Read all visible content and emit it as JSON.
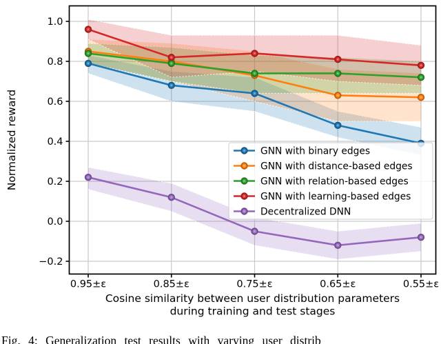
{
  "chart_data": {
    "type": "line",
    "x_categories": [
      "0.95±ε",
      "0.85±ε",
      "0.75±ε",
      "0.65±ε",
      "0.55±ε"
    ],
    "xlabel_lines": [
      "Cosine similarity between user distribution parameters",
      "during training and test stages"
    ],
    "xlabel": "Cosine similarity between user distribution parameters during training and test stages",
    "ylabel": "Normalized reward",
    "yticks": [
      {
        "v": 1.0,
        "label": "1.0"
      },
      {
        "v": 0.8,
        "label": "0.8"
      },
      {
        "v": 0.6,
        "label": "0.6"
      },
      {
        "v": 0.4,
        "label": "0.4"
      },
      {
        "v": 0.2,
        "label": "0.2"
      },
      {
        "v": 0.0,
        "label": "0.0"
      },
      {
        "v": -0.2,
        "label": "−0.2"
      }
    ],
    "ylim": [
      -0.26,
      1.08
    ],
    "grid": true,
    "legend_position": "lower-right-inside",
    "band_alpha": 0.22,
    "series": [
      {
        "name": "GNN with binary edges",
        "color": "#1f77b4",
        "values": [
          0.79,
          0.68,
          0.64,
          0.48,
          0.39
        ],
        "band_lower": [
          0.74,
          0.6,
          0.55,
          0.42,
          0.33
        ],
        "band_upper": [
          0.83,
          0.75,
          0.72,
          0.55,
          0.47
        ]
      },
      {
        "name": "GNN with distance-based edges",
        "color": "#ff7f0e",
        "values": [
          0.85,
          0.8,
          0.73,
          0.63,
          0.62
        ],
        "band_lower": [
          0.79,
          0.7,
          0.6,
          0.5,
          0.5
        ],
        "band_upper": [
          0.91,
          0.89,
          0.85,
          0.76,
          0.74
        ]
      },
      {
        "name": "GNN with relation-based edges",
        "color": "#2ca02c",
        "values": [
          0.84,
          0.79,
          0.74,
          0.74,
          0.72
        ],
        "band_lower": [
          0.79,
          0.7,
          0.64,
          0.64,
          0.64
        ],
        "band_upper": [
          0.89,
          0.87,
          0.83,
          0.82,
          0.8
        ]
      },
      {
        "name": "GNN with learning-based edges",
        "color": "#d62728",
        "values": [
          0.96,
          0.82,
          0.84,
          0.81,
          0.78
        ],
        "band_lower": [
          0.91,
          0.72,
          0.75,
          0.7,
          0.68
        ],
        "band_upper": [
          1.01,
          0.93,
          0.93,
          0.93,
          0.88
        ]
      },
      {
        "name": "Decentralized DNN",
        "color": "#9467bd",
        "values": [
          0.22,
          0.12,
          -0.05,
          -0.12,
          -0.08
        ],
        "band_lower": [
          0.16,
          0.05,
          -0.12,
          -0.19,
          -0.15
        ],
        "band_upper": [
          0.27,
          0.19,
          0.02,
          -0.05,
          -0.01
        ]
      }
    ]
  },
  "caption": {
    "text": "Fig. 4: Generalization test results with varying user distrib"
  },
  "colors": {
    "grid": "#c9c9c9",
    "spine": "#000000",
    "legend_border": "#cccccc",
    "legend_bg_opacity": 0.8,
    "text": "#000000"
  }
}
